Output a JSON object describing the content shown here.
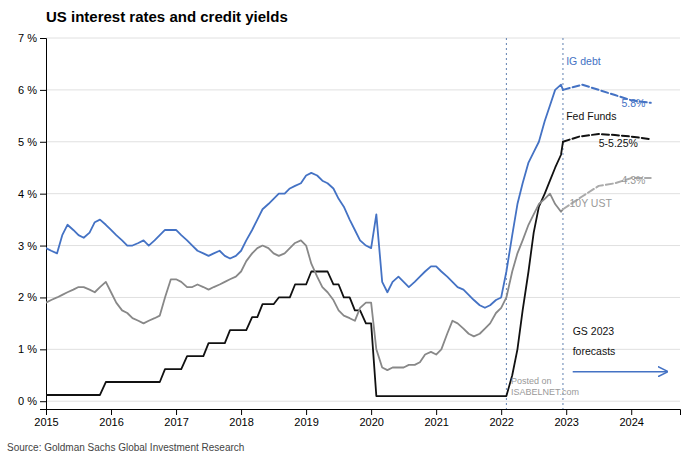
{
  "chart_data": {
    "type": "line",
    "title": "US interest rates and credit yields",
    "source": "Source: Goldman Sachs Global Investment Research",
    "xlim": [
      2015.0,
      2024.75
    ],
    "ylim": [
      -0.15,
      7.0
    ],
    "xticks": [
      2015,
      2016,
      2017,
      2018,
      2019,
      2020,
      2021,
      2022,
      2023,
      2024
    ],
    "yticks": [
      {
        "value": 0,
        "label": "0 %"
      },
      {
        "value": 1,
        "label": "1 %"
      },
      {
        "value": 2,
        "label": "2 %"
      },
      {
        "value": 3,
        "label": "3 %"
      },
      {
        "value": 4,
        "label": "4 %"
      },
      {
        "value": 5,
        "label": "5 %"
      },
      {
        "value": 6,
        "label": "6 %"
      },
      {
        "value": 7,
        "label": "7 %"
      }
    ],
    "grid": "y",
    "series": [
      {
        "color": "#4472C4",
        "line_style": "solid",
        "x": [
          2015.0,
          2015.08,
          2015.17,
          2015.25,
          2015.33,
          2015.42,
          2015.5,
          2015.58,
          2015.67,
          2015.75,
          2015.83,
          2015.92,
          2016.0,
          2016.08,
          2016.17,
          2016.25,
          2016.33,
          2016.42,
          2016.5,
          2016.58,
          2016.67,
          2016.75,
          2016.83,
          2016.92,
          2017.0,
          2017.08,
          2017.17,
          2017.25,
          2017.33,
          2017.42,
          2017.5,
          2017.58,
          2017.67,
          2017.75,
          2017.83,
          2017.92,
          2018.0,
          2018.08,
          2018.17,
          2018.25,
          2018.33,
          2018.42,
          2018.5,
          2018.58,
          2018.67,
          2018.75,
          2018.83,
          2018.92,
          2019.0,
          2019.08,
          2019.17,
          2019.25,
          2019.33,
          2019.42,
          2019.5,
          2019.58,
          2019.67,
          2019.75,
          2019.83,
          2019.92,
          2020.0,
          2020.08,
          2020.17,
          2020.25,
          2020.33,
          2020.42,
          2020.5,
          2020.58,
          2020.67,
          2020.75,
          2020.83,
          2020.92,
          2021.0,
          2021.08,
          2021.17,
          2021.25,
          2021.33,
          2021.42,
          2021.5,
          2021.58,
          2021.67,
          2021.75,
          2021.83,
          2021.92,
          2022.0,
          2022.08,
          2022.17,
          2022.25,
          2022.33,
          2022.42,
          2022.5,
          2022.58,
          2022.67,
          2022.75,
          2022.83,
          2022.92,
          2022.95
        ],
        "values": [
          2.95,
          2.9,
          2.85,
          3.2,
          3.4,
          3.3,
          3.2,
          3.15,
          3.25,
          3.45,
          3.5,
          3.4,
          3.3,
          3.2,
          3.1,
          3.0,
          3.0,
          3.05,
          3.1,
          3.0,
          3.1,
          3.2,
          3.3,
          3.3,
          3.3,
          3.2,
          3.1,
          3.0,
          2.9,
          2.85,
          2.8,
          2.85,
          2.9,
          2.8,
          2.75,
          2.8,
          2.9,
          3.1,
          3.3,
          3.5,
          3.7,
          3.8,
          3.9,
          4.0,
          4.0,
          4.1,
          4.15,
          4.2,
          4.35,
          4.4,
          4.35,
          4.25,
          4.2,
          4.1,
          3.9,
          3.75,
          3.5,
          3.3,
          3.1,
          3.0,
          2.95,
          3.6,
          2.3,
          2.1,
          2.3,
          2.4,
          2.3,
          2.2,
          2.3,
          2.4,
          2.5,
          2.6,
          2.6,
          2.5,
          2.4,
          2.3,
          2.2,
          2.15,
          2.05,
          1.95,
          1.85,
          1.8,
          1.85,
          1.95,
          2.0,
          2.5,
          3.2,
          3.8,
          4.2,
          4.6,
          4.8,
          5.0,
          5.4,
          5.7,
          6.0,
          6.1,
          6.0
        ]
      },
      {
        "color": "#111111",
        "line_style": "solid",
        "x": [
          2015.0,
          2015.08,
          2015.17,
          2015.25,
          2015.33,
          2015.42,
          2015.5,
          2015.58,
          2015.67,
          2015.75,
          2015.83,
          2015.92,
          2016.0,
          2016.08,
          2016.17,
          2016.25,
          2016.33,
          2016.42,
          2016.5,
          2016.58,
          2016.67,
          2016.75,
          2016.83,
          2016.92,
          2017.0,
          2017.08,
          2017.17,
          2017.25,
          2017.33,
          2017.42,
          2017.5,
          2017.58,
          2017.67,
          2017.75,
          2017.83,
          2017.92,
          2018.0,
          2018.08,
          2018.17,
          2018.25,
          2018.33,
          2018.42,
          2018.5,
          2018.58,
          2018.67,
          2018.75,
          2018.83,
          2018.92,
          2019.0,
          2019.08,
          2019.17,
          2019.25,
          2019.33,
          2019.42,
          2019.5,
          2019.58,
          2019.67,
          2019.75,
          2019.83,
          2019.92,
          2020.0,
          2020.08,
          2020.17,
          2020.25,
          2020.33,
          2020.42,
          2020.5,
          2020.58,
          2020.67,
          2020.75,
          2020.83,
          2020.92,
          2021.0,
          2021.08,
          2021.17,
          2021.25,
          2021.33,
          2021.42,
          2021.5,
          2021.58,
          2021.67,
          2021.75,
          2021.83,
          2021.92,
          2022.0,
          2022.08,
          2022.17,
          2022.25,
          2022.33,
          2022.42,
          2022.5,
          2022.58,
          2022.67,
          2022.75,
          2022.83,
          2022.92,
          2022.95
        ],
        "values": [
          0.12,
          0.12,
          0.12,
          0.12,
          0.12,
          0.12,
          0.12,
          0.12,
          0.12,
          0.12,
          0.12,
          0.37,
          0.37,
          0.37,
          0.37,
          0.37,
          0.37,
          0.37,
          0.37,
          0.37,
          0.37,
          0.37,
          0.62,
          0.62,
          0.62,
          0.62,
          0.87,
          0.87,
          0.87,
          0.87,
          1.12,
          1.12,
          1.12,
          1.12,
          1.37,
          1.37,
          1.37,
          1.37,
          1.62,
          1.62,
          1.87,
          1.87,
          1.87,
          2.0,
          2.0,
          2.0,
          2.25,
          2.25,
          2.25,
          2.5,
          2.5,
          2.5,
          2.5,
          2.25,
          2.25,
          2.0,
          2.0,
          1.75,
          1.75,
          1.5,
          1.5,
          0.1,
          0.1,
          0.1,
          0.1,
          0.1,
          0.1,
          0.1,
          0.1,
          0.1,
          0.1,
          0.1,
          0.1,
          0.1,
          0.1,
          0.1,
          0.1,
          0.1,
          0.1,
          0.1,
          0.1,
          0.1,
          0.1,
          0.1,
          0.1,
          0.1,
          0.5,
          1.0,
          1.75,
          2.5,
          3.25,
          3.75,
          4.0,
          4.25,
          4.5,
          4.75,
          5.0
        ]
      },
      {
        "color": "#888888",
        "line_style": "solid",
        "x": [
          2015.0,
          2015.08,
          2015.17,
          2015.25,
          2015.33,
          2015.42,
          2015.5,
          2015.58,
          2015.67,
          2015.75,
          2015.83,
          2015.92,
          2016.0,
          2016.08,
          2016.17,
          2016.25,
          2016.33,
          2016.42,
          2016.5,
          2016.58,
          2016.67,
          2016.75,
          2016.83,
          2016.92,
          2017.0,
          2017.08,
          2017.17,
          2017.25,
          2017.33,
          2017.42,
          2017.5,
          2017.58,
          2017.67,
          2017.75,
          2017.83,
          2017.92,
          2018.0,
          2018.08,
          2018.17,
          2018.25,
          2018.33,
          2018.42,
          2018.5,
          2018.58,
          2018.67,
          2018.75,
          2018.83,
          2018.92,
          2019.0,
          2019.08,
          2019.17,
          2019.25,
          2019.33,
          2019.42,
          2019.5,
          2019.58,
          2019.67,
          2019.75,
          2019.83,
          2019.92,
          2020.0,
          2020.08,
          2020.17,
          2020.25,
          2020.33,
          2020.42,
          2020.5,
          2020.58,
          2020.67,
          2020.75,
          2020.83,
          2020.92,
          2021.0,
          2021.08,
          2021.17,
          2021.25,
          2021.33,
          2021.42,
          2021.5,
          2021.58,
          2021.67,
          2021.75,
          2021.83,
          2021.92,
          2022.0,
          2022.08,
          2022.17,
          2022.25,
          2022.33,
          2022.42,
          2022.5,
          2022.58,
          2022.67,
          2022.75,
          2022.83,
          2022.92,
          2022.95
        ],
        "values": [
          1.9,
          1.95,
          2.0,
          2.05,
          2.1,
          2.15,
          2.2,
          2.2,
          2.15,
          2.1,
          2.2,
          2.3,
          2.1,
          1.9,
          1.75,
          1.7,
          1.6,
          1.55,
          1.5,
          1.55,
          1.6,
          1.65,
          2.0,
          2.35,
          2.35,
          2.3,
          2.2,
          2.2,
          2.25,
          2.2,
          2.15,
          2.2,
          2.25,
          2.3,
          2.35,
          2.4,
          2.5,
          2.7,
          2.85,
          2.95,
          3.0,
          2.95,
          2.85,
          2.8,
          2.85,
          2.95,
          3.05,
          3.1,
          3.0,
          2.65,
          2.4,
          2.2,
          2.1,
          1.95,
          1.75,
          1.65,
          1.6,
          1.55,
          1.8,
          1.9,
          1.9,
          1.0,
          0.65,
          0.6,
          0.65,
          0.65,
          0.65,
          0.7,
          0.7,
          0.75,
          0.9,
          0.95,
          0.9,
          1.0,
          1.3,
          1.55,
          1.5,
          1.4,
          1.3,
          1.25,
          1.3,
          1.4,
          1.5,
          1.7,
          1.8,
          2.0,
          2.5,
          2.85,
          3.1,
          3.4,
          3.6,
          3.8,
          3.9,
          4.0,
          3.8,
          3.65,
          3.7
        ]
      },
      {
        "color": "#4472C4",
        "line_style": "dashed",
        "x": [
          2022.95,
          2023.25,
          2023.5,
          2023.75,
          2024.0,
          2024.3
        ],
        "values": [
          6.0,
          6.1,
          6.0,
          5.9,
          5.8,
          5.75
        ]
      },
      {
        "color": "#111111",
        "line_style": "dashed",
        "x": [
          2022.95,
          2023.2,
          2023.5,
          2023.75,
          2024.0,
          2024.3
        ],
        "values": [
          5.0,
          5.1,
          5.15,
          5.13,
          5.1,
          5.05
        ]
      },
      {
        "color": "#aaaaaa",
        "line_style": "dashed",
        "x": [
          2022.95,
          2023.25,
          2023.5,
          2023.75,
          2024.0,
          2024.3
        ],
        "values": [
          3.7,
          3.95,
          4.15,
          4.2,
          4.3,
          4.3
        ]
      }
    ],
    "reference_lines": [
      {
        "x": 2022.08,
        "color": "#6080b0",
        "line_style": "dotted"
      },
      {
        "x": 2022.95,
        "color": "#6080b0",
        "line_style": "dotted"
      }
    ],
    "annotations": [
      {
        "text": "IG debt",
        "x": 2023.0,
        "y": 6.55,
        "color": "#4472C4"
      },
      {
        "text": "5.8%",
        "x": 2023.85,
        "y": 5.75,
        "color": "#4472C4"
      },
      {
        "text": "Fed Funds",
        "x": 2023.0,
        "y": 5.5,
        "color": "#111111"
      },
      {
        "text": "5-5.25%",
        "x": 2023.5,
        "y": 4.98,
        "color": "#111111"
      },
      {
        "text": "4.3%",
        "x": 2023.85,
        "y": 4.27,
        "color": "#999999"
      },
      {
        "text": "10Y UST",
        "x": 2023.05,
        "y": 3.82,
        "color": "#999999"
      },
      {
        "text": "GS 2023",
        "x": 2023.1,
        "y": 1.35,
        "color": "#111111"
      },
      {
        "text": "forecasts",
        "x": 2023.1,
        "y": 0.97,
        "color": "#111111"
      }
    ],
    "arrow": {
      "x": [
        2023.1,
        2024.55
      ],
      "y": 0.57,
      "color": "#4472C4"
    },
    "watermark": {
      "text": [
        "Posted on",
        "ISABELNET.com"
      ],
      "x": 2022.15,
      "y": 0.28,
      "color": "#999999"
    }
  }
}
